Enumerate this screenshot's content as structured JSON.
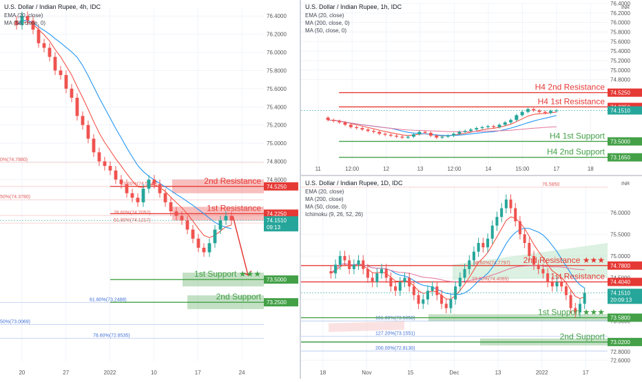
{
  "colors": {
    "candle_up": "#26a69a",
    "candle_down": "#ef5350",
    "ema": "#f44336",
    "ma50": "#2196f3",
    "ma200": "#e57399",
    "resistance": "#e53935",
    "support": "#43a047",
    "fib_red": "#e05c5c",
    "fib_blue": "#3f6fd6",
    "axis_text": "#555555",
    "price_badge": "#26a69a"
  },
  "chart_data": [
    {
      "type": "candlestick",
      "title": "U.S. Dollar / Indian Rupee, 4h, IDC",
      "indicators": [
        "EMA (20, close)",
        "MA (50, close, 0)"
      ],
      "x_tick_labels": [
        "20",
        "27",
        "2022",
        "10",
        "17",
        "24"
      ],
      "y_tick_labels": [
        "76.4000",
        "76.2000",
        "76.0000",
        "75.8000",
        "75.6000",
        "75.4000",
        "75.2000",
        "75.0000",
        "74.8000",
        "74.6000"
      ],
      "ylim": [
        72.6,
        76.5
      ],
      "close": [
        76.3,
        76.4,
        76.35,
        76.25,
        76.1,
        76.05,
        75.95,
        75.8,
        75.75,
        75.6,
        75.5,
        75.3,
        75.2,
        75.05,
        74.9,
        74.8,
        74.75,
        74.7,
        74.6,
        74.55,
        74.45,
        74.4,
        74.35,
        74.5,
        74.6,
        74.55,
        74.45,
        74.35,
        74.25,
        74.2,
        74.15,
        74.05,
        73.95,
        73.85,
        73.8,
        73.9,
        74.05,
        74.15,
        74.2,
        74.15
      ],
      "resistance_levels": [
        {
          "label": "2nd Resistance",
          "value": 74.525,
          "badge": "74.5250"
        },
        {
          "label": "1st Resistance",
          "value": 74.225,
          "badge": "74.2250"
        }
      ],
      "support_levels": [
        {
          "label": "1st Support ★★★",
          "value": 73.5,
          "badge": "73.5000"
        },
        {
          "label": "2nd Support",
          "value": 73.25,
          "badge": "73.2500"
        }
      ],
      "current_price": {
        "value": 74.151,
        "badge": "74.1510",
        "timer": "09:13"
      },
      "fib_labels": [
        {
          "text": "0%(74.7880)",
          "value": 74.788,
          "color": "red"
        },
        {
          "text": "50%(74.3780)",
          "value": 74.378,
          "color": "red"
        },
        {
          "text": "23.60%(74.5241)",
          "value": 74.5241,
          "color": "red"
        },
        {
          "text": "78.60%(74.2052)",
          "value": 74.2052,
          "color": "red"
        },
        {
          "text": "61.80%(74.1217)",
          "value": 74.1217,
          "color": "red"
        },
        {
          "text": "61.80%(73.2488)",
          "value": 73.2488,
          "color": "blue"
        },
        {
          "text": "50%(73.0069)",
          "value": 73.0069,
          "color": "blue"
        },
        {
          "text": "78.60%(72.8535)",
          "value": 72.8535,
          "color": "blue"
        }
      ]
    },
    {
      "type": "candlestick",
      "title": "U.S. Dollar / Indian Rupee, 1h, IDC",
      "indicators": [
        "EMA (20, close)",
        "MA (200, close, 0)",
        "MA (50, close, 0)"
      ],
      "currency": "INR",
      "x_tick_labels": [
        "11",
        "12:00",
        "12",
        "13",
        "12:00",
        "14",
        "15:00",
        "17",
        "18"
      ],
      "y_tick_labels": [
        "76.4000",
        "76.2000",
        "76.0000",
        "75.8000",
        "75.6000",
        "75.4000",
        "75.2000",
        "75.0000",
        "74.8000"
      ],
      "ylim": [
        73.0,
        76.4
      ],
      "close": [
        73.95,
        73.93,
        73.9,
        73.85,
        73.8,
        73.78,
        73.75,
        73.72,
        73.7,
        73.66,
        73.64,
        73.62,
        73.6,
        73.58,
        73.6,
        73.65,
        73.7,
        73.68,
        73.62,
        73.58,
        73.6,
        73.62,
        73.66,
        73.7,
        73.72,
        73.75,
        73.78,
        73.8,
        73.82,
        73.8,
        73.85,
        73.9,
        73.95,
        74.05,
        74.12,
        74.18,
        74.15,
        74.12,
        74.1,
        74.14,
        74.15
      ],
      "resistance_levels": [
        {
          "label": "H4 2nd Resistance",
          "value": 74.525,
          "badge": "74.5250"
        },
        {
          "label": "H4 1st Resistance",
          "value": 74.225,
          "badge": "74.2250"
        }
      ],
      "support_levels": [
        {
          "label": "H4 1st Support",
          "value": 73.5,
          "badge": "73.5000"
        },
        {
          "label": "H4 2nd Support",
          "value": 73.165,
          "badge": "73.1650"
        }
      ],
      "current_price": {
        "value": 74.151,
        "badge": "74.1510"
      }
    },
    {
      "type": "candlestick",
      "title": "U.S. Dollar / Indian Rupee, 1D, IDC",
      "indicators": [
        "EMA (20, close)",
        "MA (200, close)",
        "MA (50, close, 0)",
        "Ichimoku (9, 26, 52, 26)"
      ],
      "currency": "INR",
      "x_tick_labels": [
        "18",
        "Nov",
        "15",
        "Dec",
        "13",
        "2022",
        "17"
      ],
      "y_tick_labels": [
        "76.0000",
        "75.5000",
        "75.0000",
        "74.5000",
        "74.0000",
        "73.5000",
        "73.0000",
        "72.8000",
        "72.6000"
      ],
      "ylim": [
        72.4,
        76.6
      ],
      "close": [
        74.6,
        74.8,
        75.0,
        74.9,
        74.7,
        74.8,
        74.9,
        74.7,
        74.5,
        74.4,
        74.6,
        74.7,
        74.5,
        74.3,
        74.2,
        74.4,
        74.5,
        74.3,
        74.1,
        73.9,
        74.0,
        74.2,
        74.3,
        74.1,
        73.9,
        73.8,
        74.0,
        74.3,
        74.5,
        74.7,
        74.9,
        75.1,
        75.3,
        75.2,
        75.4,
        75.7,
        75.9,
        76.1,
        76.3,
        76.1,
        75.8,
        75.5,
        75.3,
        75.0,
        74.8,
        74.7,
        74.6,
        74.4,
        74.3,
        74.4,
        74.3,
        74.1,
        73.8,
        73.7,
        73.9,
        74.15
      ],
      "resistance_levels": [
        {
          "label": "2nd Resistance ★★★",
          "value": 74.78,
          "badge": "74.7800"
        },
        {
          "label": "1st Resistance",
          "value": 74.404,
          "badge": "74.4040"
        }
      ],
      "support_levels": [
        {
          "label": "1st Support ★★★",
          "value": 73.58,
          "badge": "73.5800"
        },
        {
          "label": "2nd Support",
          "value": 73.02,
          "badge": "73.0200"
        }
      ],
      "current_price": {
        "value": 74.151,
        "badge": "74.1510",
        "timer": "20:09:13"
      },
      "fib_labels": [
        {
          "text": "76.5850",
          "value": 76.585,
          "color": "red"
        },
        {
          "text": "68.60%(74.7797)",
          "value": 74.7797,
          "color": "red"
        },
        {
          "text": "23.60%(74.4085)",
          "value": 74.4085,
          "color": "red"
        },
        {
          "text": "161.80%(73.5058)",
          "value": 73.5058,
          "color": "blue"
        },
        {
          "text": "127.20%(73.1551)",
          "value": 73.1551,
          "color": "blue"
        },
        {
          "text": "200.00%(72.8130)",
          "value": 72.813,
          "color": "blue"
        }
      ]
    }
  ]
}
